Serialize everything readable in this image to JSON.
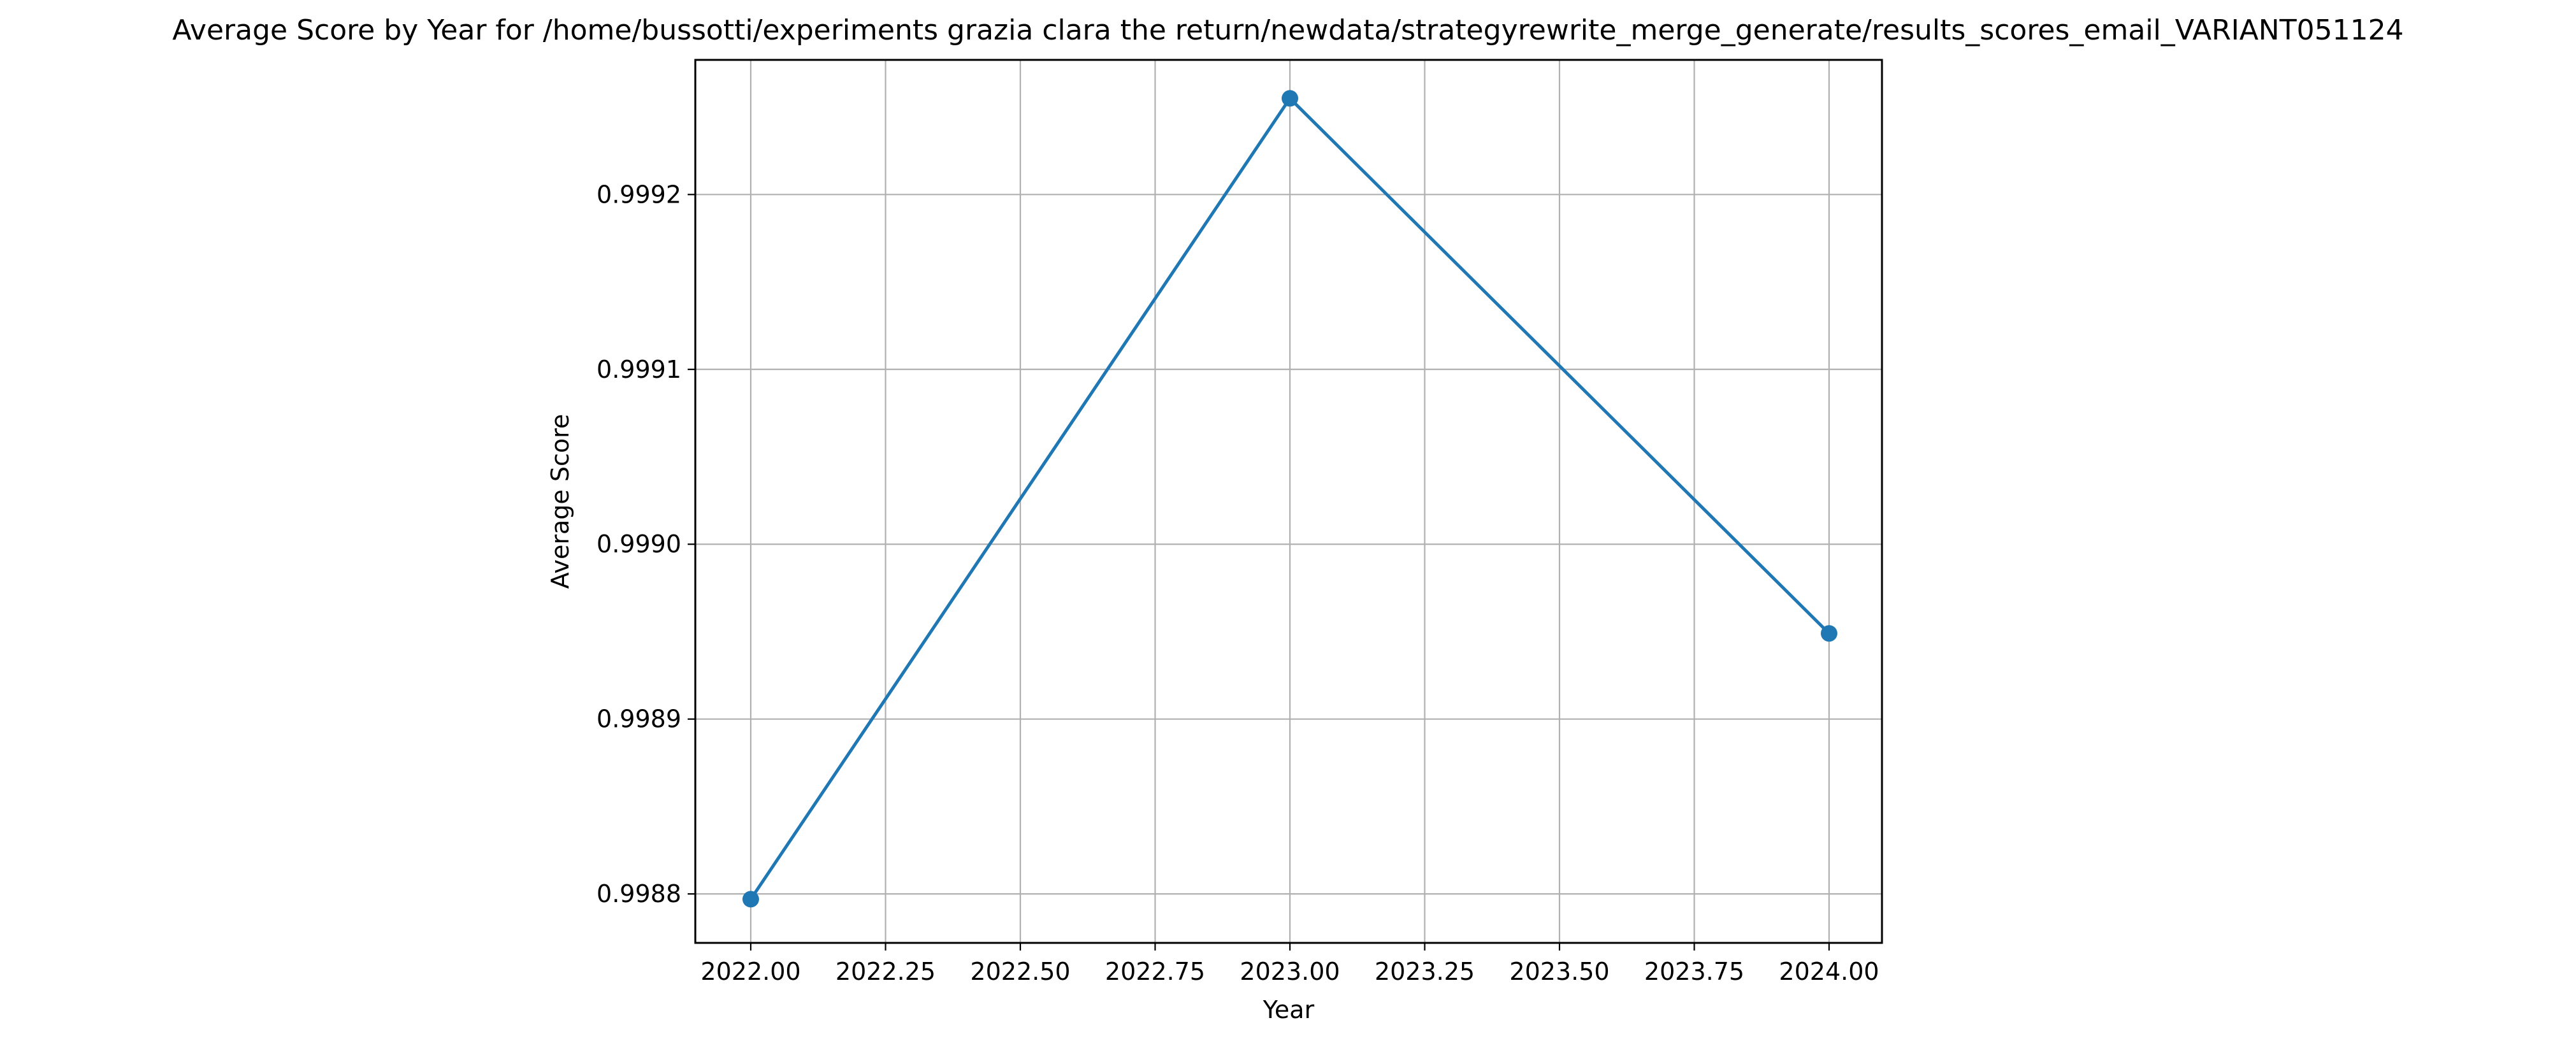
{
  "chart_data": {
    "type": "line",
    "title": "Average Score by Year for /home/bussotti/experiments grazia clara the return/newdata/strategyrewrite_merge_generate/results_scores_email_VARIANT051124",
    "xlabel": "Year",
    "ylabel": "Average Score",
    "x": [
      2022,
      2023,
      2024
    ],
    "series": [
      {
        "values": [
          0.998797,
          0.999255,
          0.998949
        ],
        "color": "#1f77b4",
        "marker": "circle"
      }
    ],
    "xlim": [
      1999.9,
      2024.1
    ],
    "ylim": [
      0.998772,
      0.999277
    ],
    "xticks": [
      2022.0,
      2022.25,
      2022.5,
      2022.75,
      2023.0,
      2023.25,
      2023.5,
      2023.75,
      2024.0
    ],
    "xtick_labels": [
      "2022.00",
      "2022.25",
      "2022.50",
      "2022.75",
      "2023.00",
      "2023.25",
      "2023.50",
      "2023.75",
      "2024.00"
    ],
    "yticks": [
      0.9988,
      0.9989,
      0.999,
      0.9991,
      0.9992
    ],
    "ytick_labels": [
      "0.9988",
      "0.9989",
      "0.9990",
      "0.9991",
      "0.9992"
    ],
    "grid": true,
    "legend": null
  }
}
